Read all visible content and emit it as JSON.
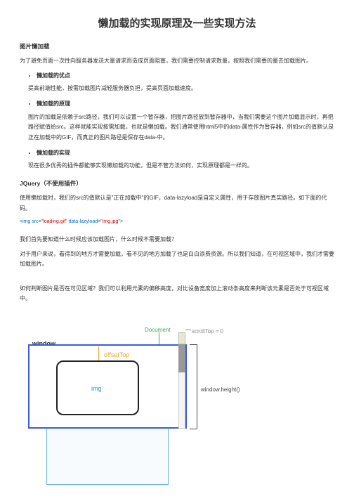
{
  "title": "懒加载的实现原理及一些实现方法",
  "section1": {
    "heading": "图片懒加载",
    "intro": "为了避免页面一次性向服务器发送大量请求而造成页面阻塞，我们需要控制请求数量，按照我们需要的量去加载图片。",
    "bullet1": "懒加载的优点",
    "p1": "提高前端性能，按需加载图片减轻服务器负担，提高页面加载速度。",
    "bullet2": "懒加载的原理",
    "p2": "图片的加载是依赖于src路径，我们可以设置一个暂存器，把图片路径放到暂存器中，当我们需要这个图片加载显示时，再把路径赋值给src。这样就能实现按需加载，也就是懒加载。我们通常使用html5中的data-属性作为暂存器，例如src的值默认是正在加载中的GIF，而真正的图片路径是保存在data-中。",
    "bullet3": "懒加载的实现",
    "p3": "现在很多优秀的插件都能够实现懒加载的功能，但是不管方法如何，实现原理都是一样的。"
  },
  "section2": {
    "heading": "JQuery（不使用插件）",
    "p1": "使用懒加载时，我们的src的值默认是\"正在加载中\"的GIF，data-lazyload是自定义属性，用于存放图片真实路径。如下面的代码。",
    "code_prefix": "<img src=",
    "code_src": "\"loading.gif\"",
    "code_attr": " data-lazyload=",
    "code_val": "\"img.jpg\"",
    "code_suffix": ">",
    "p2": "我们首先要知道什么时候应该加载图片，什么时候不需要加载？",
    "p3": "对于用户来说，看得到的地方才需要加载，看不见的地方加载了也是白白浪费资源。所以我们知道，在可视区域中，我们才需要加载图片。",
    "p4": "如何判断图片是否在可见区域？我们可以利用元素的偏移高度，对比设备宽度加上滚动条高度来判断该元素是否处于可视区域中。"
  },
  "diagram": {
    "document_label": "Document",
    "window_label": "window",
    "offsettop_label": "offsetTop",
    "img_label": "img",
    "scrolltop_label": "scrollTop = 0",
    "windowheight_label": "window.height()",
    "colors": {
      "window_border": "#3b5bdb",
      "doc_border": "#6db5d9",
      "doc_label": "#3aa655",
      "offset_label": "#f5a623",
      "img_label": "#2b98d6"
    }
  }
}
